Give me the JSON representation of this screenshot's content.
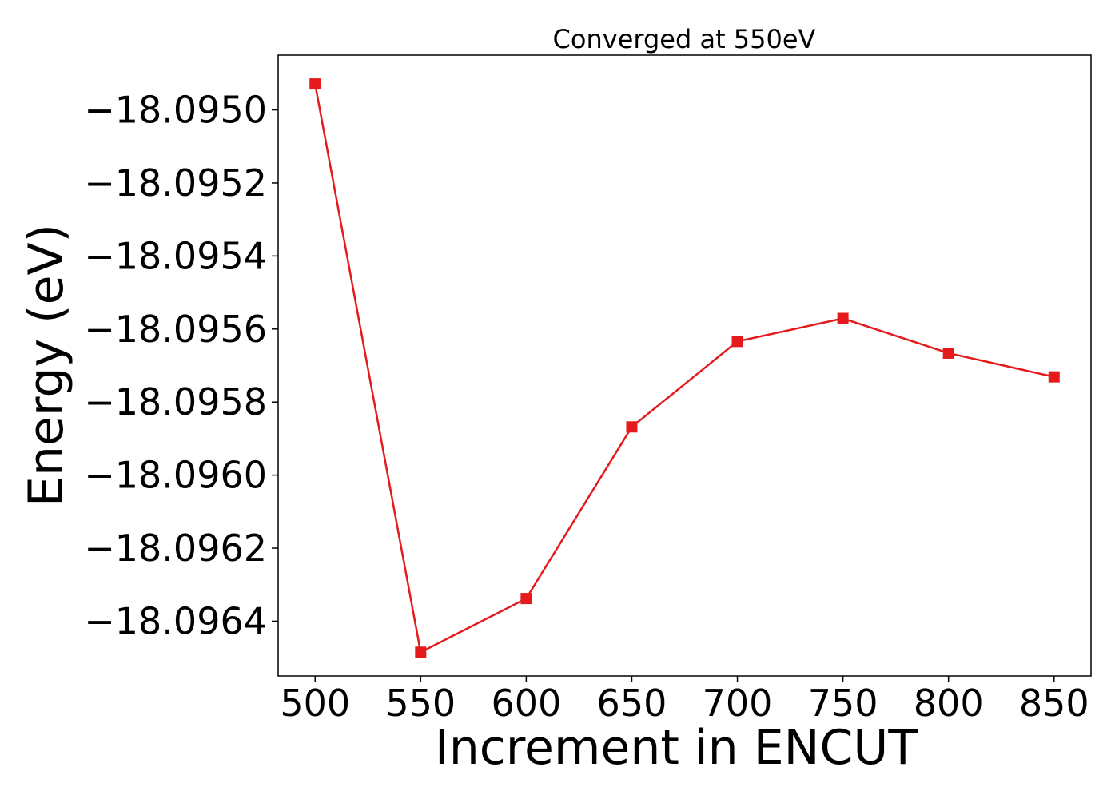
{
  "chart_data": {
    "type": "line",
    "title": "Converged at 550eV",
    "xlabel": "Increment in ENCUT",
    "ylabel": "Energy (eV)",
    "x": [
      500,
      550,
      600,
      650,
      700,
      750,
      800,
      850
    ],
    "series": [
      {
        "values": [
          -18.094929,
          -18.096485,
          -18.096338,
          -18.095868,
          -18.095634,
          -18.095571,
          -18.095666,
          -18.095731
        ],
        "color": "#e41a1c",
        "marker": "square"
      }
    ],
    "xlim": [
      482.5,
      867.5
    ],
    "ylim": [
      -18.09655,
      -18.09485
    ],
    "xticks": [
      500,
      550,
      600,
      650,
      700,
      750,
      800,
      850
    ],
    "xtick_labels": [
      "500",
      "550",
      "600",
      "650",
      "700",
      "750",
      "800",
      "850"
    ],
    "yticks": [
      -18.095,
      -18.0952,
      -18.0954,
      -18.0956,
      -18.0958,
      -18.096,
      -18.0962,
      -18.0964
    ],
    "ytick_labels": [
      "−18.0950",
      "−18.0952",
      "−18.0954",
      "−18.0956",
      "−18.0958",
      "−18.0960",
      "−18.0962",
      "−18.0964"
    ],
    "grid": false,
    "legend": "none"
  }
}
